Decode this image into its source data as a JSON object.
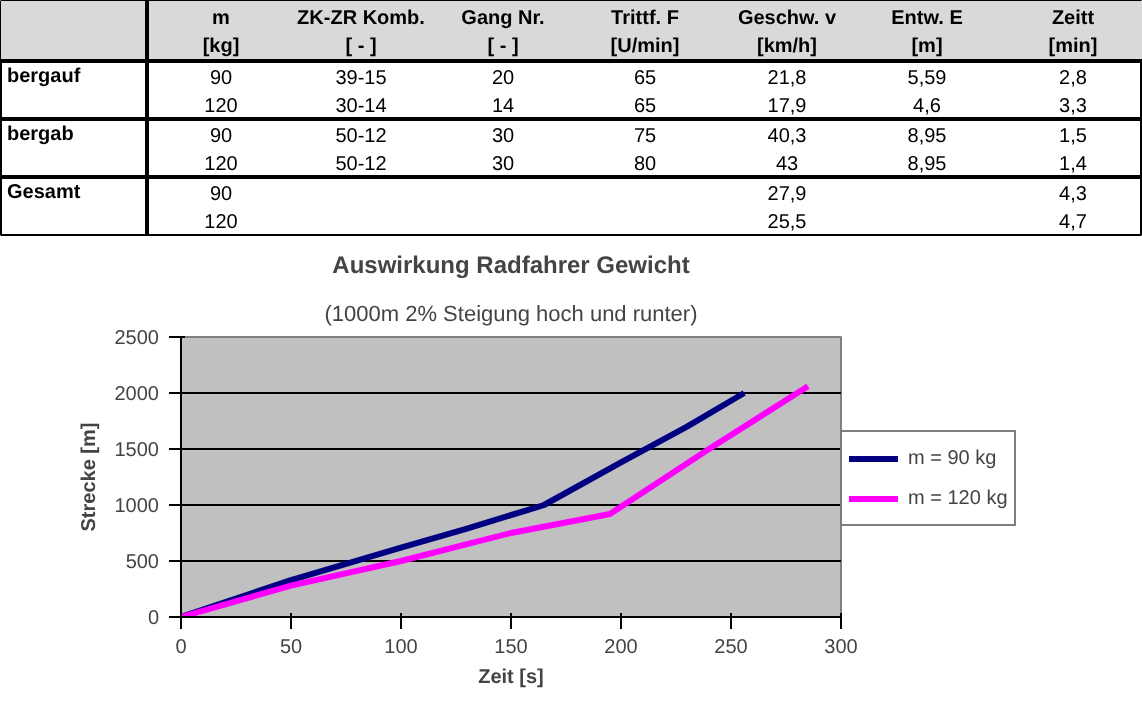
{
  "chart_data": [
    {
      "type": "other",
      "annotations": [
        "m",
        "ZK-ZR Komb.",
        "Gang Nr.",
        "Trittf. F",
        "Geschw. v",
        "Entw. E",
        "Zeitt",
        "[kg]",
        "[ - ]",
        "[ - ]",
        "[U/min]",
        "[km/h]",
        "[m]",
        "[min]",
        "bergauf",
        "90",
        "39-15",
        "20",
        "65",
        "21,8",
        "5,59",
        "2,8",
        "120",
        "30-14",
        "14",
        "65",
        "17,9",
        "4,6",
        "3,3",
        "bergab",
        "90",
        "50-12",
        "30",
        "75",
        "40,3",
        "8,95",
        "1,5",
        "120",
        "50-12",
        "30",
        "80",
        "43",
        "8,95",
        "1,4",
        "Gesamt",
        "90",
        "27,9",
        "4,3",
        "120",
        "25,5",
        "4,7"
      ]
    },
    {
      "type": "line",
      "title": "Auswirkung Radfahrer Gewicht",
      "subtitle": "(1000m 2% Steigung hoch und runter)",
      "xlabel": "Zeit [s]",
      "ylabel": "Strecke [m]",
      "xlim": [
        0,
        300
      ],
      "xticks": [
        0,
        50,
        100,
        150,
        200,
        250,
        300
      ],
      "ylim": [
        0,
        2500
      ],
      "yticks": [
        0,
        500,
        1000,
        1500,
        2000,
        2500
      ],
      "grid": "y",
      "legend": "right",
      "line_style": "solid",
      "series": [
        {
          "name": "m = 90 kg",
          "color": "#000080",
          "x": [
            0,
            50,
            100,
            130,
            165,
            200,
            230,
            256
          ],
          "values": [
            0,
            330,
            620,
            790,
            1000,
            1380,
            1700,
            2000
          ]
        },
        {
          "name": "m = 120 kg",
          "color": "#ff00ff",
          "x": [
            0,
            50,
            100,
            130,
            150,
            195,
            240,
            285
          ],
          "values": [
            0,
            280,
            500,
            650,
            750,
            920,
            1500,
            2060
          ]
        }
      ]
    }
  ]
}
